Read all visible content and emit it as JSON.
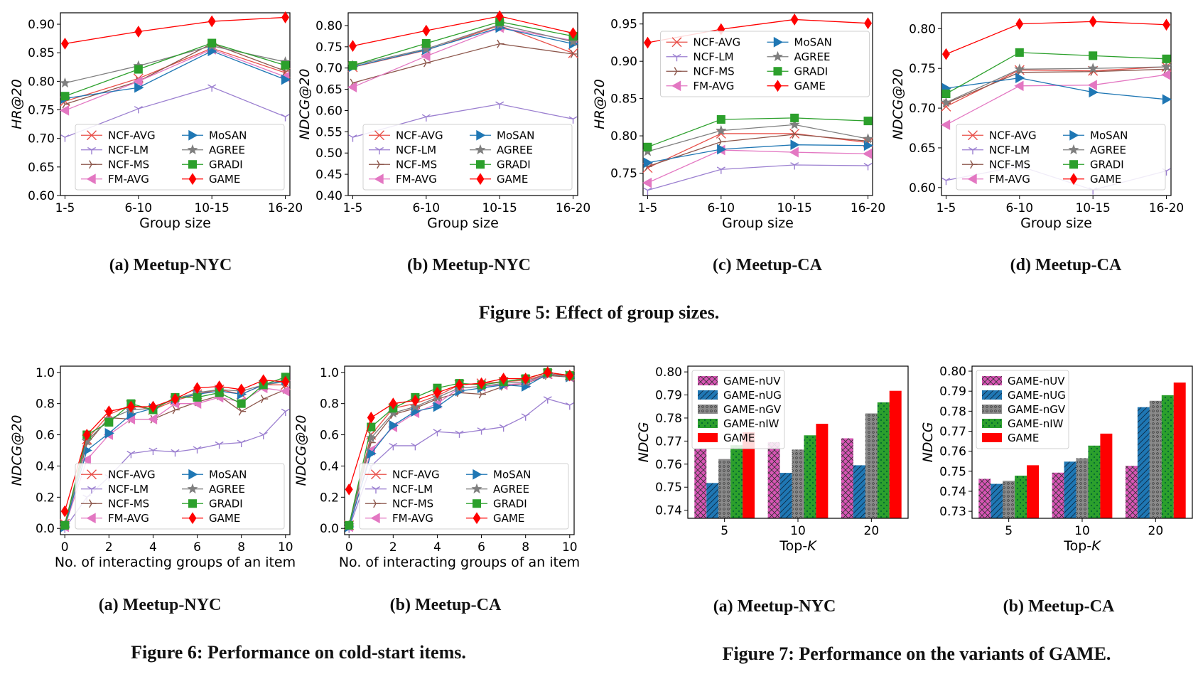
{
  "chart_data": [
    {
      "id": "fig5a",
      "type": "line",
      "categories": [
        "1-5",
        "6-10",
        "10-15",
        "16-20"
      ],
      "xlabel": "Group size",
      "ylabel": "HR@20",
      "ylim": [
        0.6,
        0.92
      ],
      "yticks": [
        0.6,
        0.65,
        0.7,
        0.75,
        0.8,
        0.85,
        0.9
      ],
      "tick_decimals": 2,
      "legend": "lower-right",
      "legend_cols": 2,
      "series": [
        {
          "name": "NCF-AVG",
          "values": [
            0.765,
            0.805,
            0.858,
            0.815
          ]
        },
        {
          "name": "NCF-LM",
          "values": [
            0.702,
            0.752,
            0.79,
            0.738
          ]
        },
        {
          "name": "NCF-MS",
          "values": [
            0.76,
            0.8,
            0.866,
            0.818
          ]
        },
        {
          "name": "FM-AVG",
          "values": [
            0.749,
            0.8,
            0.856,
            0.808
          ]
        },
        {
          "name": "MoSAN",
          "values": [
            0.77,
            0.789,
            0.853,
            0.803
          ]
        },
        {
          "name": "AGREE",
          "values": [
            0.797,
            0.827,
            0.862,
            0.834
          ]
        },
        {
          "name": "GRADI",
          "values": [
            0.774,
            0.821,
            0.867,
            0.828
          ]
        },
        {
          "name": "GAME",
          "values": [
            0.866,
            0.887,
            0.905,
            0.912
          ]
        }
      ],
      "caption": "(a) Meetup-NYC"
    },
    {
      "id": "fig5b",
      "type": "line",
      "categories": [
        "1-5",
        "6-10",
        "10-15",
        "16-20"
      ],
      "xlabel": "Group size",
      "ylabel": "NDCG@20",
      "ylim": [
        0.4,
        0.83
      ],
      "yticks": [
        0.4,
        0.45,
        0.5,
        0.55,
        0.6,
        0.65,
        0.7,
        0.75,
        0.8
      ],
      "tick_decimals": 2,
      "legend": "lower-right",
      "legend_cols": 2,
      "series": [
        {
          "name": "NCF-AVG",
          "values": [
            0.702,
            0.742,
            0.8,
            0.735
          ]
        },
        {
          "name": "NCF-LM",
          "values": [
            0.537,
            0.585,
            0.615,
            0.58
          ]
        },
        {
          "name": "NCF-MS",
          "values": [
            0.665,
            0.712,
            0.757,
            0.733
          ]
        },
        {
          "name": "FM-AVG",
          "values": [
            0.655,
            0.728,
            0.795,
            0.765
          ]
        },
        {
          "name": "MoSAN",
          "values": [
            0.703,
            0.743,
            0.795,
            0.757
          ]
        },
        {
          "name": "AGREE",
          "values": [
            0.706,
            0.745,
            0.802,
            0.762
          ]
        },
        {
          "name": "GRADI",
          "values": [
            0.706,
            0.758,
            0.809,
            0.775
          ]
        },
        {
          "name": "GAME",
          "values": [
            0.752,
            0.788,
            0.822,
            0.782
          ]
        }
      ],
      "caption": "(b) Meetup-NYC"
    },
    {
      "id": "fig5c",
      "type": "line",
      "categories": [
        "1-5",
        "6-10",
        "10-15",
        "16-20"
      ],
      "xlabel": "Group size",
      "ylabel": "HR@20",
      "ylim": [
        0.72,
        0.965
      ],
      "yticks": [
        0.75,
        0.8,
        0.85,
        0.9,
        0.95
      ],
      "tick_decimals": 2,
      "legend": "upper-center",
      "legend_cols": 2,
      "series": [
        {
          "name": "NCF-AVG",
          "values": [
            0.757,
            0.803,
            0.803,
            0.791
          ]
        },
        {
          "name": "NCF-LM",
          "values": [
            0.727,
            0.755,
            0.761,
            0.76
          ]
        },
        {
          "name": "NCF-MS",
          "values": [
            0.759,
            0.792,
            0.802,
            0.793
          ]
        },
        {
          "name": "FM-AVG",
          "values": [
            0.737,
            0.781,
            0.778,
            0.776
          ]
        },
        {
          "name": "MoSAN",
          "values": [
            0.764,
            0.782,
            0.788,
            0.787
          ]
        },
        {
          "name": "AGREE",
          "values": [
            0.779,
            0.807,
            0.815,
            0.796
          ]
        },
        {
          "name": "GRADI",
          "values": [
            0.785,
            0.822,
            0.824,
            0.82
          ]
        },
        {
          "name": "GAME",
          "values": [
            0.925,
            0.943,
            0.956,
            0.951
          ]
        }
      ],
      "caption": "(c) Meetup-CA"
    },
    {
      "id": "fig5d",
      "type": "line",
      "categories": [
        "1-5",
        "6-10",
        "10-15",
        "16-20"
      ],
      "xlabel": "Group size",
      "ylabel": "NDCG@20",
      "ylim": [
        0.59,
        0.82
      ],
      "yticks": [
        0.6,
        0.65,
        0.7,
        0.75,
        0.8
      ],
      "tick_decimals": 2,
      "legend": "lower-right",
      "legend_cols": 2,
      "series": [
        {
          "name": "NCF-AVG",
          "values": [
            0.702,
            0.748,
            0.747,
            0.752
          ]
        },
        {
          "name": "NCF-LM",
          "values": [
            0.609,
            0.627,
            0.597,
            0.621
          ]
        },
        {
          "name": "NCF-MS",
          "values": [
            0.706,
            0.745,
            0.746,
            0.749
          ]
        },
        {
          "name": "FM-AVG",
          "values": [
            0.679,
            0.728,
            0.729,
            0.742
          ]
        },
        {
          "name": "MoSAN",
          "values": [
            0.725,
            0.738,
            0.72,
            0.711
          ]
        },
        {
          "name": "AGREE",
          "values": [
            0.707,
            0.749,
            0.75,
            0.752
          ]
        },
        {
          "name": "GRADI",
          "values": [
            0.718,
            0.77,
            0.766,
            0.762
          ]
        },
        {
          "name": "GAME",
          "values": [
            0.768,
            0.806,
            0.809,
            0.805
          ]
        }
      ],
      "caption": "(d) Meetup-CA"
    },
    {
      "id": "fig6a",
      "type": "line",
      "x": [
        0,
        1,
        2,
        3,
        4,
        5,
        6,
        7,
        8,
        9,
        10
      ],
      "xlabel": "No. of interacting groups of an item",
      "ylabel": "NDCG@20",
      "xlim": [
        -0.2,
        10.2
      ],
      "xticks": [
        0,
        2,
        4,
        6,
        8,
        10
      ],
      "ylim": [
        -0.04,
        1.04
      ],
      "yticks": [
        0.0,
        0.2,
        0.4,
        0.6,
        0.8,
        1.0
      ],
      "tick_decimals": 1,
      "legend": "lower-right",
      "legend_cols": 2,
      "series": [
        {
          "name": "NCF-AVG",
          "values": [
            0.03,
            0.57,
            0.73,
            0.79,
            0.76,
            0.82,
            0.86,
            0.89,
            0.86,
            0.92,
            0.92
          ]
        },
        {
          "name": "NCF-LM",
          "values": [
            0.0,
            0.2,
            0.33,
            0.48,
            0.5,
            0.49,
            0.51,
            0.54,
            0.55,
            0.6,
            0.75
          ]
        },
        {
          "name": "NCF-MS",
          "values": [
            0.02,
            0.54,
            0.71,
            0.7,
            0.7,
            0.76,
            0.81,
            0.85,
            0.75,
            0.83,
            0.89
          ]
        },
        {
          "name": "FM-AVG",
          "values": [
            0.01,
            0.44,
            0.6,
            0.7,
            0.7,
            0.8,
            0.8,
            0.84,
            0.81,
            0.9,
            0.88
          ]
        },
        {
          "name": "MoSAN",
          "values": [
            0.01,
            0.5,
            0.61,
            0.73,
            0.77,
            0.83,
            0.86,
            0.88,
            0.86,
            0.92,
            0.95
          ]
        },
        {
          "name": "AGREE",
          "values": [
            0.02,
            0.56,
            0.7,
            0.76,
            0.77,
            0.83,
            0.87,
            0.89,
            0.88,
            0.92,
            0.94
          ]
        },
        {
          "name": "GRADI",
          "values": [
            0.02,
            0.6,
            0.68,
            0.8,
            0.76,
            0.84,
            0.84,
            0.87,
            0.8,
            0.92,
            0.97
          ]
        },
        {
          "name": "GAME",
          "values": [
            0.11,
            0.6,
            0.75,
            0.78,
            0.78,
            0.83,
            0.9,
            0.91,
            0.89,
            0.95,
            0.94
          ]
        }
      ],
      "caption": "(a) Meetup-NYC"
    },
    {
      "id": "fig6b",
      "type": "line",
      "x": [
        0,
        1,
        2,
        3,
        4,
        5,
        6,
        7,
        8,
        9,
        10
      ],
      "xlabel": "No. of interacting groups of an item",
      "ylabel": "NDCG@20",
      "xlim": [
        -0.2,
        10.2
      ],
      "xticks": [
        0,
        2,
        4,
        6,
        8,
        10
      ],
      "ylim": [
        -0.04,
        1.04
      ],
      "yticks": [
        0.0,
        0.2,
        0.4,
        0.6,
        0.8,
        1.0
      ],
      "tick_decimals": 1,
      "legend": "lower-right",
      "legend_cols": 2,
      "series": [
        {
          "name": "NCF-AVG",
          "values": [
            0.02,
            0.6,
            0.77,
            0.8,
            0.85,
            0.92,
            0.93,
            0.94,
            0.95,
            0.99,
            0.98
          ]
        },
        {
          "name": "NCF-LM",
          "values": [
            0.0,
            0.4,
            0.53,
            0.53,
            0.62,
            0.61,
            0.63,
            0.65,
            0.72,
            0.83,
            0.79
          ]
        },
        {
          "name": "NCF-MS",
          "values": [
            0.02,
            0.55,
            0.73,
            0.77,
            0.83,
            0.87,
            0.86,
            0.91,
            0.93,
            0.98,
            0.97
          ]
        },
        {
          "name": "FM-AVG",
          "values": [
            0.01,
            0.5,
            0.65,
            0.74,
            0.8,
            0.9,
            0.91,
            0.92,
            0.93,
            0.99,
            0.97
          ]
        },
        {
          "name": "MoSAN",
          "values": [
            0.01,
            0.48,
            0.66,
            0.75,
            0.78,
            0.88,
            0.9,
            0.92,
            0.91,
            0.99,
            0.97
          ]
        },
        {
          "name": "AGREE",
          "values": [
            0.02,
            0.58,
            0.74,
            0.78,
            0.84,
            0.9,
            0.91,
            0.93,
            0.94,
            0.99,
            0.97
          ]
        },
        {
          "name": "GRADI",
          "values": [
            0.02,
            0.65,
            0.77,
            0.84,
            0.9,
            0.93,
            0.92,
            0.94,
            0.96,
            1.0,
            0.98
          ]
        },
        {
          "name": "GAME",
          "values": [
            0.25,
            0.71,
            0.8,
            0.82,
            0.87,
            0.92,
            0.93,
            0.96,
            0.96,
            1.0,
            0.98
          ]
        }
      ],
      "caption": "(b) Meetup-CA"
    },
    {
      "id": "fig7a",
      "type": "bar",
      "categories": [
        "5",
        "10",
        "20"
      ],
      "xlabel": "Top-K",
      "ylabel": "NDCG",
      "ylim": [
        0.7365,
        0.8025
      ],
      "yticks": [
        0.74,
        0.75,
        0.76,
        0.77,
        0.78,
        0.79,
        0.8
      ],
      "tick_decimals": 2,
      "legend": "upper-left",
      "legend_cols": 1,
      "series": [
        {
          "name": "GAME-nUV",
          "values": [
            0.7665,
            0.7695,
            0.7712
          ]
        },
        {
          "name": "GAME-nUG",
          "values": [
            0.7518,
            0.7562,
            0.7595
          ]
        },
        {
          "name": "GAME-nGV",
          "values": [
            0.7622,
            0.7663,
            0.782
          ]
        },
        {
          "name": "GAME-nIW",
          "values": [
            0.7682,
            0.7725,
            0.7868
          ]
        },
        {
          "name": "GAME",
          "values": [
            0.7738,
            0.7775,
            0.7918
          ]
        }
      ],
      "caption": "(a) Meetup-NYC"
    },
    {
      "id": "fig7b",
      "type": "bar",
      "categories": [
        "5",
        "10",
        "20"
      ],
      "xlabel": "Top-K",
      "ylabel": "NDCG",
      "ylim": [
        0.7265,
        0.8025
      ],
      "yticks": [
        0.73,
        0.74,
        0.75,
        0.76,
        0.77,
        0.78,
        0.79,
        0.8
      ],
      "tick_decimals": 2,
      "legend": "upper-left",
      "legend_cols": 1,
      "series": [
        {
          "name": "GAME-nUV",
          "values": [
            0.7462,
            0.7493,
            0.7527
          ]
        },
        {
          "name": "GAME-nUG",
          "values": [
            0.7437,
            0.7548,
            0.782
          ]
        },
        {
          "name": "GAME-nGV",
          "values": [
            0.7452,
            0.7565,
            0.7852
          ]
        },
        {
          "name": "GAME-nIW",
          "values": [
            0.7478,
            0.7628,
            0.788
          ]
        },
        {
          "name": "GAME",
          "values": [
            0.753,
            0.7688,
            0.7943
          ]
        }
      ],
      "caption": "(b) Meetup-CA"
    }
  ],
  "figure_captions": {
    "fig5": "Figure 5: Effect of group sizes.",
    "fig6": "Figure 6: Performance on cold-start items.",
    "fig7": "Figure 7: Performance on the variants of GAME."
  },
  "series_styles": {
    "NCF-AVG": {
      "color": "#e8504a",
      "marker": "x"
    },
    "NCF-LM": {
      "color": "#9b7fd0",
      "marker": "tri_down"
    },
    "NCF-MS": {
      "color": "#8c564b",
      "marker": "tri_right"
    },
    "FM-AVG": {
      "color": "#e377c2",
      "marker": "triangle_left"
    },
    "MoSAN": {
      "color": "#1f77b4",
      "marker": "triangle_right"
    },
    "AGREE": {
      "color": "#7f7f7f",
      "marker": "star"
    },
    "GRADI": {
      "color": "#2ca02c",
      "marker": "square"
    },
    "GAME": {
      "color": "#ff0000",
      "marker": "diamond"
    }
  },
  "bar_styles": {
    "GAME-nUV": {
      "color": "#d855b5",
      "pattern": "crosshatch"
    },
    "GAME-nUG": {
      "color": "#1f77b4",
      "pattern": "diagonal"
    },
    "GAME-nGV": {
      "color": "#8a8a8a",
      "pattern": "dots-dense"
    },
    "GAME-nIW": {
      "color": "#2ca02c",
      "pattern": "dots"
    },
    "GAME": {
      "color": "#ff0000",
      "pattern": "solid"
    }
  }
}
